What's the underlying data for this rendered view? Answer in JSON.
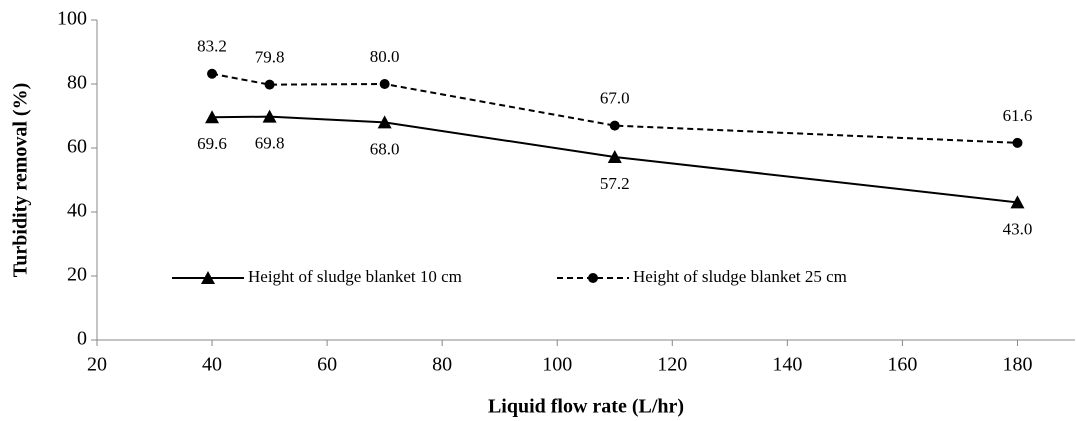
{
  "chart_data": {
    "type": "line",
    "x": [
      40,
      50,
      70,
      110,
      180
    ],
    "xlabel": "Liquid flow rate (L/hr)",
    "ylabel": "Turbidity removal (%)",
    "xlim": [
      20,
      190
    ],
    "xticks": [
      20,
      40,
      60,
      80,
      100,
      120,
      140,
      160,
      180
    ],
    "ylim": [
      0,
      100
    ],
    "yticks": [
      0,
      20,
      40,
      60,
      80,
      100
    ],
    "grid": false,
    "legend": "lower left",
    "series": [
      {
        "name": "Height of sludge blanket 10 cm",
        "color": "#000000",
        "dash": "solid",
        "marker": "triangle",
        "values": [
          69.6,
          69.8,
          68.0,
          57.2,
          43.0
        ],
        "value_labels": [
          "69.6",
          "69.8",
          "68.0",
          "57.2",
          "43.0"
        ]
      },
      {
        "name": "Height of sludge blanket 25 cm",
        "color": "#000000",
        "dash": "dashed",
        "marker": "circle",
        "values": [
          83.2,
          79.8,
          80.0,
          67.0,
          61.6
        ],
        "value_labels": [
          "83.2",
          "79.8",
          "80.0",
          "67.0",
          "61.6"
        ]
      }
    ]
  }
}
